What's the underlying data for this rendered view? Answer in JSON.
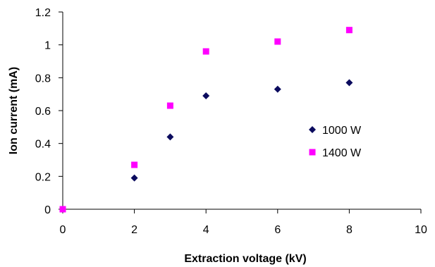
{
  "chart_data": {
    "type": "scatter",
    "xlabel": "Extraction voltage (kV)",
    "ylabel": "Ion current (mA)",
    "xlim": [
      0,
      10
    ],
    "ylim": [
      0,
      1.2
    ],
    "x_ticks": [
      "0",
      "2",
      "4",
      "6",
      "8",
      "10"
    ],
    "y_ticks": [
      "0",
      "0.2",
      "0.4",
      "0.6",
      "0.8",
      "1",
      "1.2"
    ],
    "grid": false,
    "legend_position": "right",
    "series": [
      {
        "name": "1000 W",
        "marker": "diamond",
        "color": "#0b0b5e",
        "x": [
          0,
          2,
          3,
          4,
          6,
          8
        ],
        "y": [
          0,
          0.19,
          0.44,
          0.69,
          0.73,
          0.77
        ]
      },
      {
        "name": "1400 W",
        "marker": "square",
        "color": "#ff00ff",
        "x": [
          0,
          2,
          3,
          4,
          6,
          8
        ],
        "y": [
          0,
          0.27,
          0.63,
          0.96,
          1.02,
          1.09
        ]
      }
    ]
  }
}
